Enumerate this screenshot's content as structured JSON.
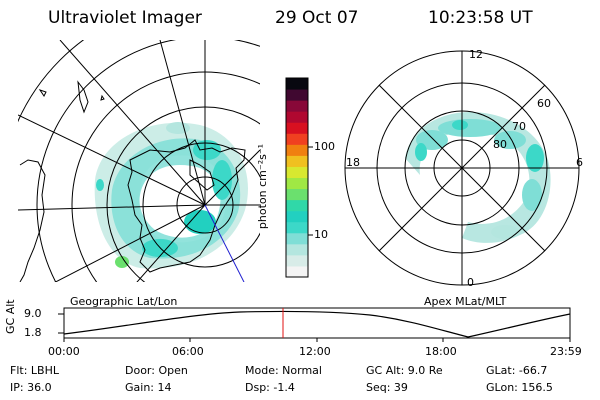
{
  "header": {
    "instrument": "Ultraviolet Imager",
    "date": "29 Oct 07",
    "time": "10:23:58 UT"
  },
  "geographic_panel": {
    "label": "Geographic Lat/Lon"
  },
  "magnetic_panel": {
    "label": "Apex MLat/MLT",
    "mlt_labels": {
      "top": "12",
      "left": "18",
      "right": "6",
      "bottom": "0"
    },
    "lat_labels": [
      "80",
      "70",
      "60"
    ]
  },
  "colorbar": {
    "unit_label": "photon cm⁻²s⁻¹",
    "tick_labels": [
      "100",
      "10"
    ],
    "colors": [
      "#f4f4f4",
      "#d8ece8",
      "#b4e6df",
      "#7fded6",
      "#3cd8c8",
      "#22d0c0",
      "#30d8a8",
      "#6be06e",
      "#a0e844",
      "#d8e830",
      "#f0c020",
      "#f08010",
      "#f04020",
      "#d81020",
      "#b00830",
      "#880838",
      "#400830",
      "#080810"
    ]
  },
  "altitude_timeline": {
    "axis_label": "GC Alt",
    "y_ticks": [
      "9.0",
      "1.8"
    ],
    "x_ticks": [
      "00:00",
      "06:00",
      "12:00",
      "18:00",
      "23:59"
    ]
  },
  "info": {
    "filter": "Flt: LBHL",
    "ip": "IP: 36.0",
    "door": "Door: Open",
    "gain": "Gain: 14",
    "mode": "Mode: Normal",
    "dsp": "Dsp:   -1.4",
    "gc_alt": "GC Alt: 9.0 Re",
    "seq": "Seq: 39",
    "glat": "GLat: -66.7",
    "glon": "GLon: 156.5"
  }
}
